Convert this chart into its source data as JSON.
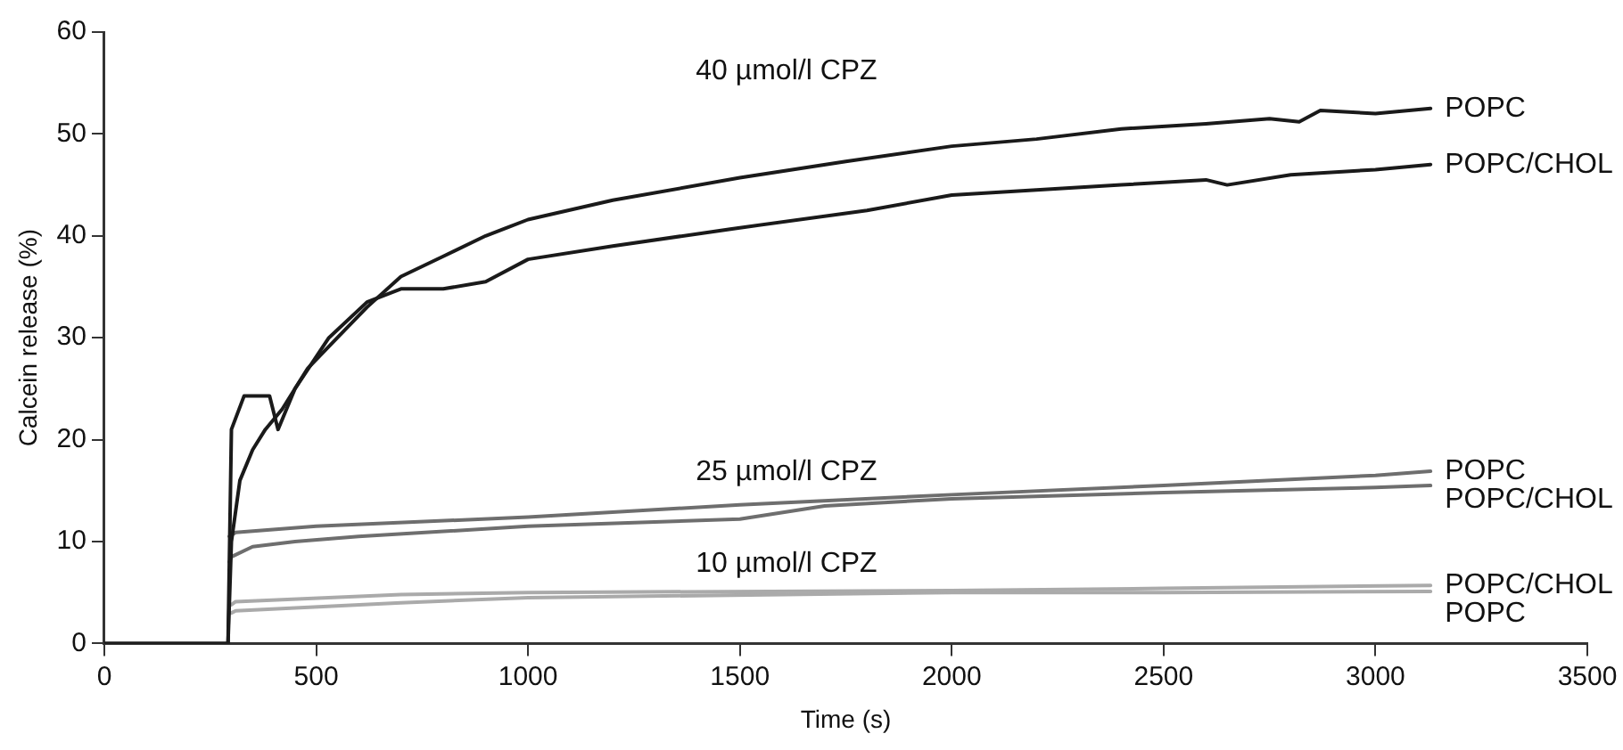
{
  "chart_data": {
    "type": "line",
    "xlabel": "Time (s)",
    "ylabel": "Calcein release (%)",
    "xlim": [
      0,
      3500
    ],
    "xticks": [
      0,
      500,
      1000,
      1500,
      2000,
      2500,
      3000,
      3500
    ],
    "ylim": [
      0,
      60
    ],
    "yticks": [
      0,
      10,
      20,
      30,
      40,
      50,
      60
    ],
    "grid": false,
    "legend": false,
    "marker": "none",
    "line_style": "solid",
    "annotations": [
      "40 µmol/l CPZ",
      "25 µmol/l CPZ",
      "10 µmol/l CPZ"
    ],
    "series": [
      {
        "name": "POPC",
        "color": "#1a1a1a",
        "x": [
          0,
          292,
          300,
          320,
          350,
          380,
          420,
          480,
          550,
          620,
          700,
          800,
          900,
          1000,
          1200,
          1500,
          1750,
          2000,
          2200,
          2400,
          2600,
          2750,
          2820,
          2870,
          3000,
          3130
        ],
        "values": [
          0,
          0,
          10,
          16,
          19,
          21,
          23,
          27,
          30,
          33,
          36,
          38,
          40,
          41.6,
          43.5,
          45.7,
          47.3,
          48.8,
          49.5,
          50.5,
          51,
          51.5,
          51.2,
          52.3,
          52,
          52.5
        ]
      },
      {
        "name": "POPC/CHOL",
        "color": "#1a1a1a",
        "x": [
          0,
          292,
          300,
          330,
          390,
          410,
          450,
          530,
          620,
          700,
          800,
          900,
          1000,
          1200,
          1500,
          1800,
          2000,
          2200,
          2400,
          2600,
          2650,
          2800,
          3000,
          3130
        ],
        "values": [
          0,
          0,
          21,
          24.3,
          24.3,
          21,
          25,
          30,
          33.5,
          34.8,
          34.8,
          35.5,
          37.7,
          39,
          40.8,
          42.5,
          44,
          44.5,
          45,
          45.5,
          45,
          46,
          46.5,
          47
        ]
      },
      {
        "name": "POPC",
        "color": "#6e6e6e",
        "x": [
          295,
          310,
          500,
          1000,
          1500,
          2000,
          2500,
          3000,
          3130
        ],
        "values": [
          10.5,
          10.9,
          11.5,
          12.4,
          13.6,
          14.6,
          15.5,
          16.5,
          16.9
        ]
      },
      {
        "name": "POPC/CHOL",
        "color": "#6e6e6e",
        "x": [
          295,
          300,
          350,
          450,
          600,
          1000,
          1500,
          1700,
          2000,
          2500,
          3000,
          3130
        ],
        "values": [
          8,
          8.5,
          9.5,
          10,
          10.5,
          11.5,
          12.2,
          13.5,
          14.2,
          14.8,
          15.3,
          15.5
        ]
      },
      {
        "name": "POPC/CHOL",
        "color": "#aaaaaa",
        "x": [
          300,
          310,
          700,
          1000,
          2000,
          2500,
          3130
        ],
        "values": [
          3.8,
          4.1,
          4.8,
          5,
          5.2,
          5.4,
          5.7
        ]
      },
      {
        "name": "POPC",
        "color": "#aaaaaa",
        "x": [
          300,
          310,
          700,
          1000,
          2000,
          2500,
          3130
        ],
        "values": [
          3,
          3.2,
          4,
          4.5,
          5,
          5,
          5.1
        ]
      }
    ]
  }
}
